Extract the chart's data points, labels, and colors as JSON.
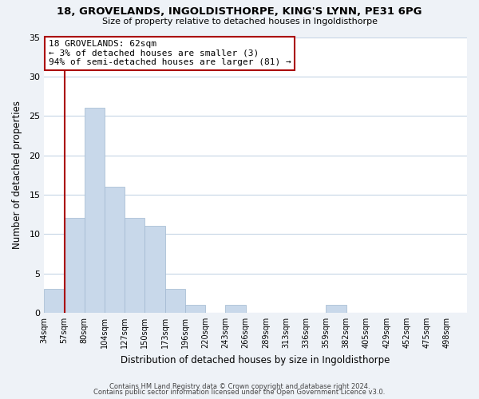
{
  "title1": "18, GROVELANDS, INGOLDISTHORPE, KING'S LYNN, PE31 6PG",
  "title2": "Size of property relative to detached houses in Ingoldisthorpe",
  "xlabel": "Distribution of detached houses by size in Ingoldisthorpe",
  "ylabel": "Number of detached properties",
  "bin_labels": [
    "34sqm",
    "57sqm",
    "80sqm",
    "104sqm",
    "127sqm",
    "150sqm",
    "173sqm",
    "196sqm",
    "220sqm",
    "243sqm",
    "266sqm",
    "289sqm",
    "313sqm",
    "336sqm",
    "359sqm",
    "382sqm",
    "405sqm",
    "429sqm",
    "452sqm",
    "475sqm",
    "498sqm"
  ],
  "bar_heights": [
    3,
    12,
    26,
    16,
    12,
    11,
    3,
    1,
    0,
    1,
    0,
    0,
    0,
    0,
    1,
    0,
    0,
    0,
    0,
    0,
    0
  ],
  "bar_color": "#c8d8ea",
  "bar_edge_color": "#a0b8d0",
  "annotation_title": "18 GROVELANDS: 62sqm",
  "annotation_line1": "← 3% of detached houses are smaller (3)",
  "annotation_line2": "94% of semi-detached houses are larger (81) →",
  "annotation_box_facecolor": "#ffffff",
  "annotation_border_color": "#aa0000",
  "marker_line_color": "#aa0000",
  "marker_bin_index": 1,
  "ylim": [
    0,
    35
  ],
  "yticks": [
    0,
    5,
    10,
    15,
    20,
    25,
    30,
    35
  ],
  "footer1": "Contains HM Land Registry data © Crown copyright and database right 2024.",
  "footer2": "Contains public sector information licensed under the Open Government Licence v3.0.",
  "bg_color": "#eef2f7",
  "plot_bg_color": "#ffffff",
  "grid_color": "#c5d5e5"
}
